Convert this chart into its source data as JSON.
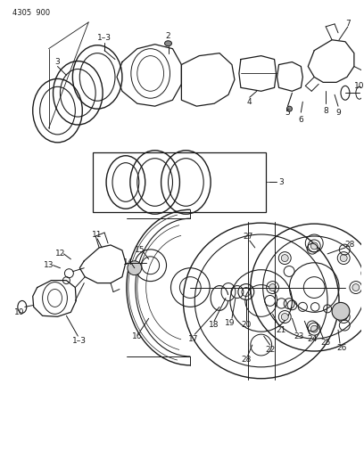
{
  "title": "4305  900",
  "bg_color": "#ffffff",
  "line_color": "#1a1a1a",
  "text_color": "#1a1a1a",
  "fig_width": 4.08,
  "fig_height": 5.33,
  "dpi": 100
}
